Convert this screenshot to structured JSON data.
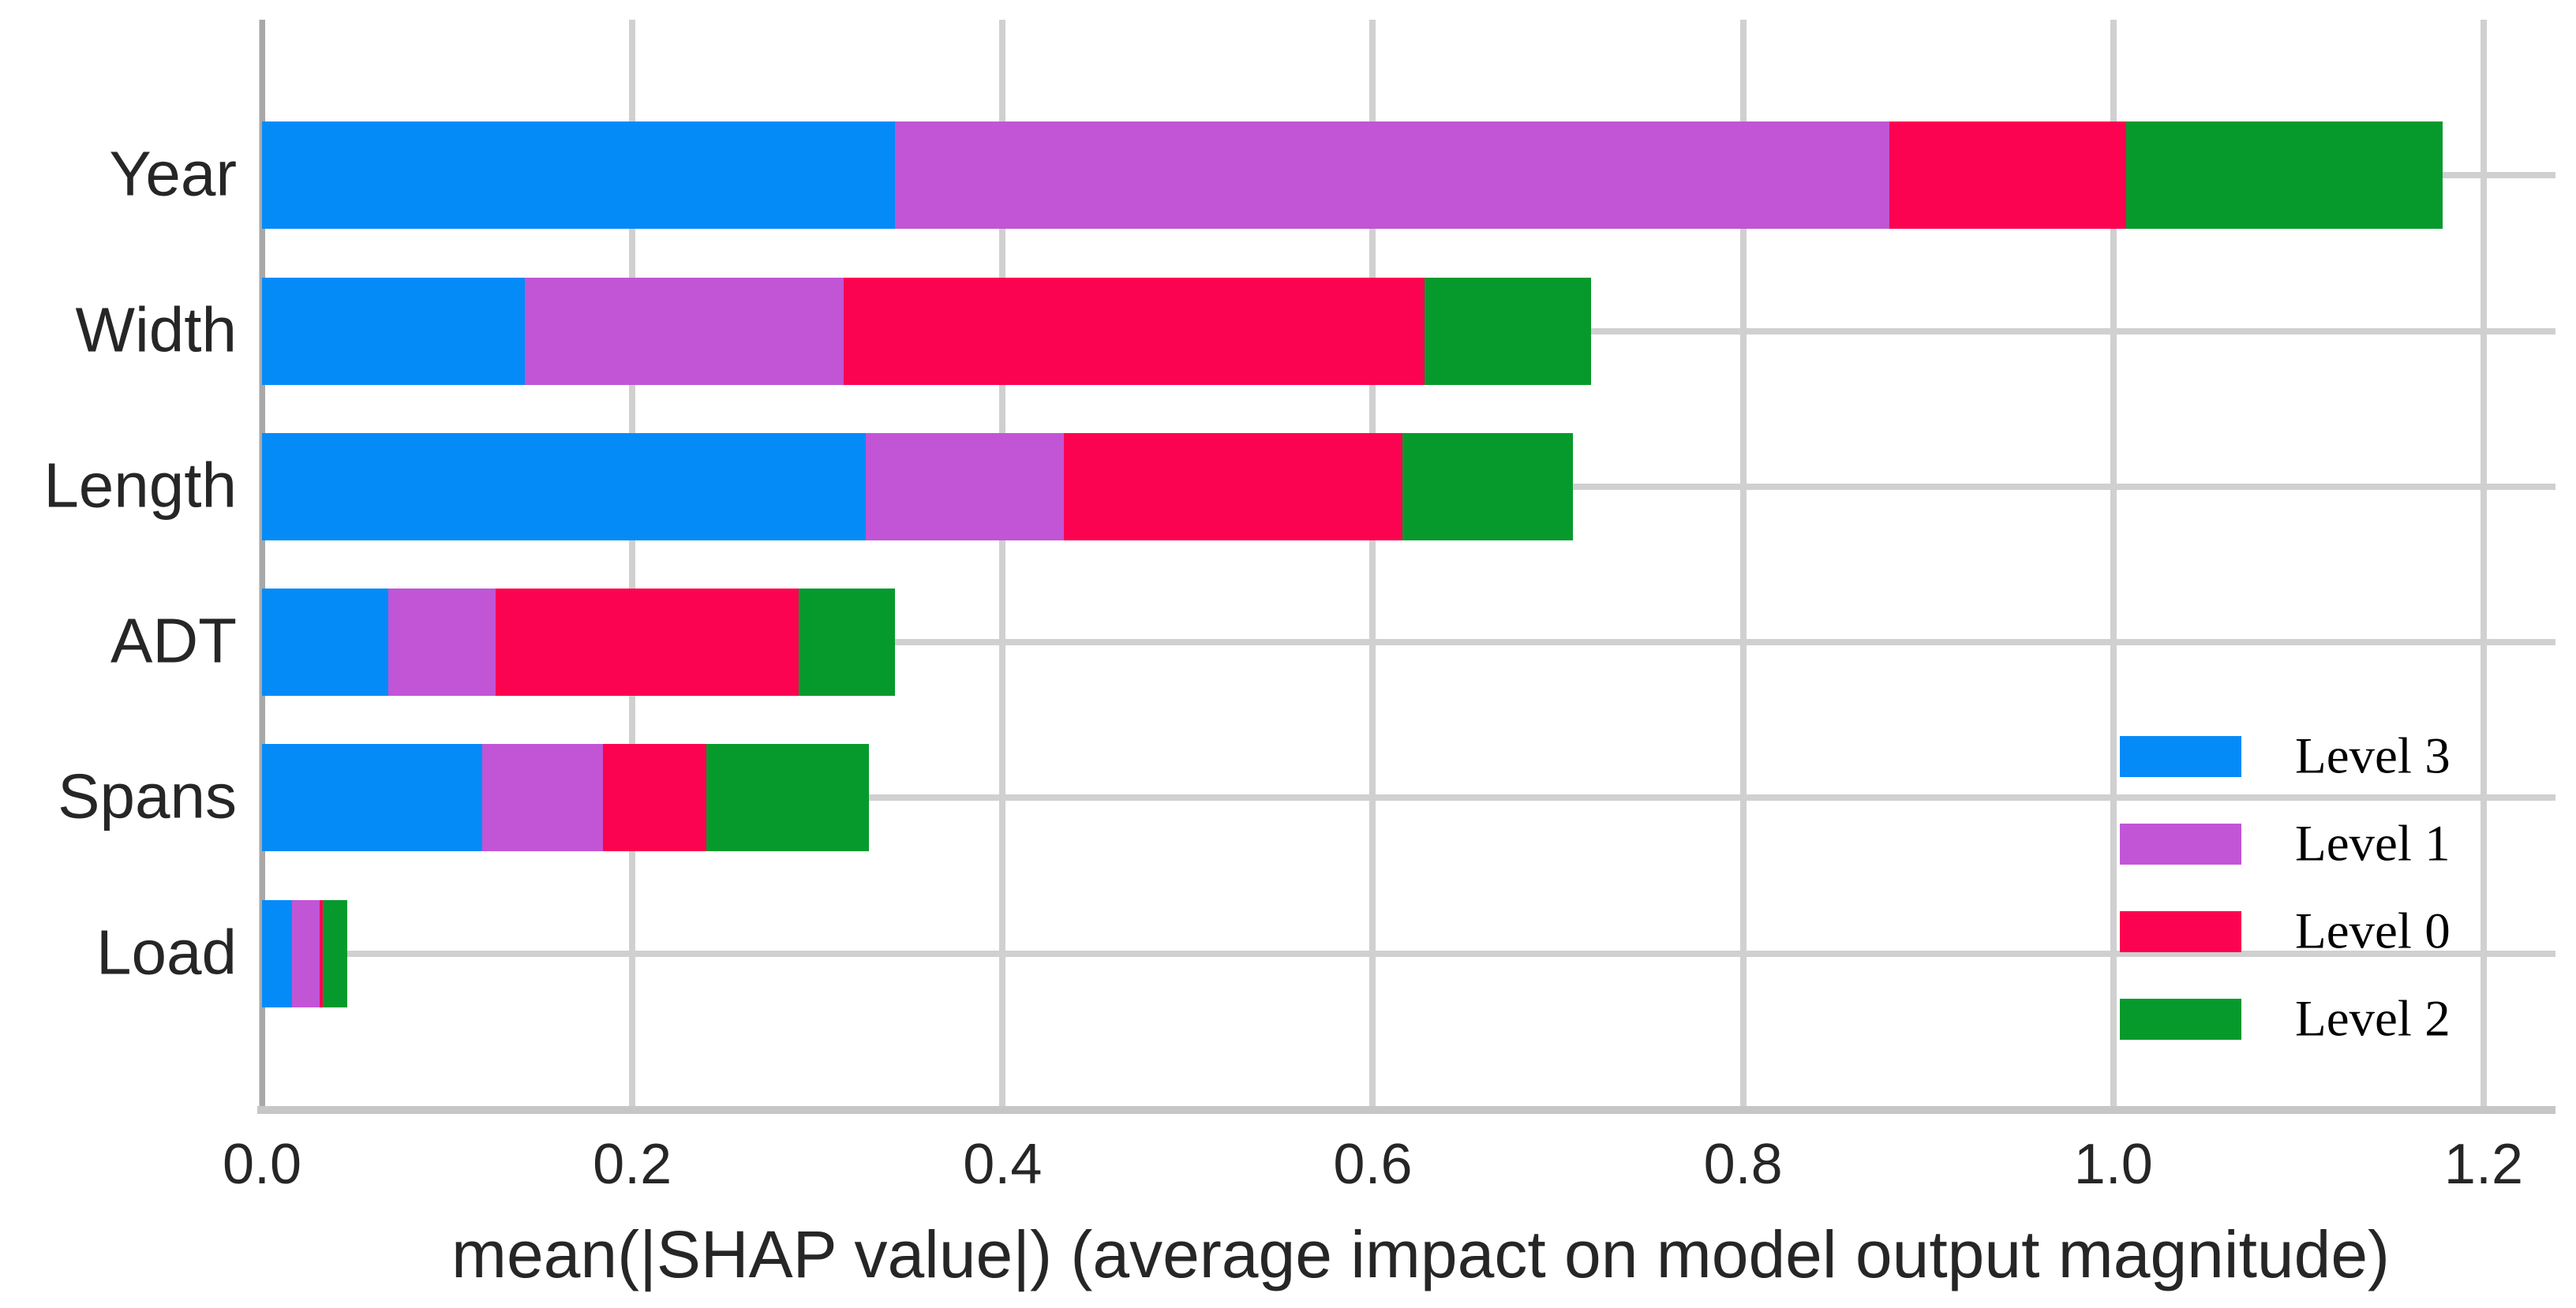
{
  "figure": {
    "background": "#ffffff",
    "grid_color": "#d0d0d0",
    "axis_line_color": "#c6c6c6",
    "text_color": "#262626"
  },
  "chart_data": {
    "type": "bar",
    "orientation": "horizontal",
    "stacked": true,
    "title": "",
    "xlabel": "mean(|SHAP value|) (average impact on model output magnitude)",
    "ylabel": "",
    "categories": [
      "Year",
      "Width",
      "Length",
      "ADT",
      "Spans",
      "Load"
    ],
    "series": [
      {
        "name": "Level 3",
        "color": "#058bf8",
        "values": [
          0.342,
          0.142,
          0.326,
          0.068,
          0.119,
          0.016
        ]
      },
      {
        "name": "Level 1",
        "color": "#c155d6",
        "values": [
          0.537,
          0.172,
          0.107,
          0.058,
          0.065,
          0.015
        ]
      },
      {
        "name": "Level 0",
        "color": "#fc0351",
        "values": [
          0.128,
          0.314,
          0.183,
          0.164,
          0.056,
          0.002
        ]
      },
      {
        "name": "Level 2",
        "color": "#069a2d",
        "values": [
          0.171,
          0.09,
          0.092,
          0.052,
          0.088,
          0.013
        ]
      }
    ],
    "totals": [
      1.178,
      0.718,
      0.708,
      0.342,
      0.328,
      0.046
    ],
    "xlim": [
      0.0,
      1.2
    ],
    "xticks": [
      "0.0",
      "0.2",
      "0.4",
      "0.6",
      "0.8",
      "1.0",
      "1.2"
    ],
    "grid": true,
    "legend": {
      "position": "lower-right",
      "entries": [
        "Level 3",
        "Level 1",
        "Level 0",
        "Level 2"
      ]
    }
  }
}
